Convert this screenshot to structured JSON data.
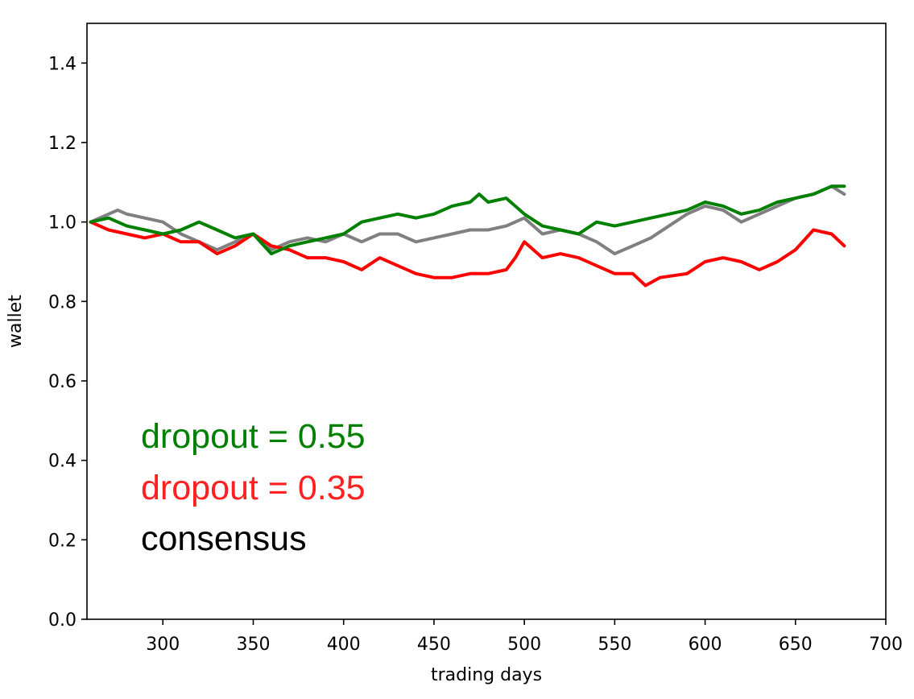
{
  "chart_data": {
    "type": "line",
    "title": "",
    "xlabel": "trading days",
    "ylabel": "wallet",
    "xlim": [
      258,
      700
    ],
    "ylim": [
      0.0,
      1.5
    ],
    "xticks": [
      300,
      350,
      400,
      450,
      500,
      550,
      600,
      650,
      700
    ],
    "yticks": [
      0.0,
      0.2,
      0.4,
      0.6,
      0.8,
      1.0,
      1.2,
      1.4
    ],
    "xtick_labels": [
      "300",
      "350",
      "400",
      "450",
      "500",
      "550",
      "600",
      "650",
      "700"
    ],
    "ytick_labels": [
      "0.0",
      "0.2",
      "0.4",
      "0.6",
      "0.8",
      "1.0",
      "1.2",
      "1.4"
    ],
    "grid": false,
    "series": [
      {
        "name": "dropout = 0.55",
        "color": "#008000",
        "x": [
          260,
          270,
          280,
          290,
          300,
          310,
          320,
          330,
          340,
          350,
          360,
          370,
          380,
          390,
          400,
          410,
          420,
          430,
          440,
          450,
          460,
          470,
          475,
          480,
          490,
          500,
          510,
          520,
          530,
          540,
          550,
          560,
          570,
          580,
          590,
          600,
          610,
          620,
          630,
          640,
          650,
          660,
          670,
          677
        ],
        "values": [
          1.0,
          1.01,
          0.99,
          0.98,
          0.97,
          0.98,
          1.0,
          0.98,
          0.96,
          0.97,
          0.92,
          0.94,
          0.95,
          0.96,
          0.97,
          1.0,
          1.01,
          1.02,
          1.01,
          1.02,
          1.04,
          1.05,
          1.07,
          1.05,
          1.06,
          1.02,
          0.99,
          0.98,
          0.97,
          1.0,
          0.99,
          1.0,
          1.01,
          1.02,
          1.03,
          1.05,
          1.04,
          1.02,
          1.03,
          1.05,
          1.06,
          1.07,
          1.09,
          1.09
        ]
      },
      {
        "name": "dropout = 0.35",
        "color": "#ff0000",
        "x": [
          260,
          270,
          280,
          290,
          300,
          310,
          320,
          330,
          340,
          350,
          360,
          370,
          380,
          390,
          400,
          410,
          420,
          430,
          440,
          450,
          460,
          470,
          480,
          490,
          495,
          500,
          510,
          520,
          530,
          540,
          550,
          560,
          567,
          575,
          590,
          600,
          610,
          620,
          630,
          640,
          650,
          660,
          670,
          677
        ],
        "values": [
          1.0,
          0.98,
          0.97,
          0.96,
          0.97,
          0.95,
          0.95,
          0.92,
          0.94,
          0.97,
          0.94,
          0.93,
          0.91,
          0.91,
          0.9,
          0.88,
          0.91,
          0.89,
          0.87,
          0.86,
          0.86,
          0.87,
          0.87,
          0.88,
          0.91,
          0.95,
          0.91,
          0.92,
          0.91,
          0.89,
          0.87,
          0.87,
          0.84,
          0.86,
          0.87,
          0.9,
          0.91,
          0.9,
          0.88,
          0.9,
          0.93,
          0.98,
          0.97,
          0.94
        ]
      },
      {
        "name": "consensus",
        "color": "#808080",
        "x": [
          260,
          270,
          275,
          280,
          290,
          300,
          310,
          320,
          330,
          340,
          350,
          360,
          370,
          380,
          390,
          400,
          410,
          420,
          430,
          440,
          450,
          460,
          470,
          480,
          490,
          500,
          510,
          520,
          530,
          540,
          550,
          560,
          570,
          580,
          590,
          600,
          610,
          620,
          630,
          640,
          650,
          660,
          670,
          677
        ],
        "values": [
          1.0,
          1.02,
          1.03,
          1.02,
          1.01,
          1.0,
          0.97,
          0.95,
          0.93,
          0.95,
          0.97,
          0.93,
          0.95,
          0.96,
          0.95,
          0.97,
          0.95,
          0.97,
          0.97,
          0.95,
          0.96,
          0.97,
          0.98,
          0.98,
          0.99,
          1.01,
          0.97,
          0.98,
          0.97,
          0.95,
          0.92,
          0.94,
          0.96,
          0.99,
          1.02,
          1.04,
          1.03,
          1.0,
          1.02,
          1.04,
          1.06,
          1.07,
          1.09,
          1.07
        ]
      }
    ],
    "annotations": [
      {
        "text": "dropout = 0.55",
        "color": "#008000"
      },
      {
        "text": "dropout = 0.35",
        "color": "#ff2020"
      },
      {
        "text": "consensus",
        "color": "#000000"
      }
    ]
  }
}
